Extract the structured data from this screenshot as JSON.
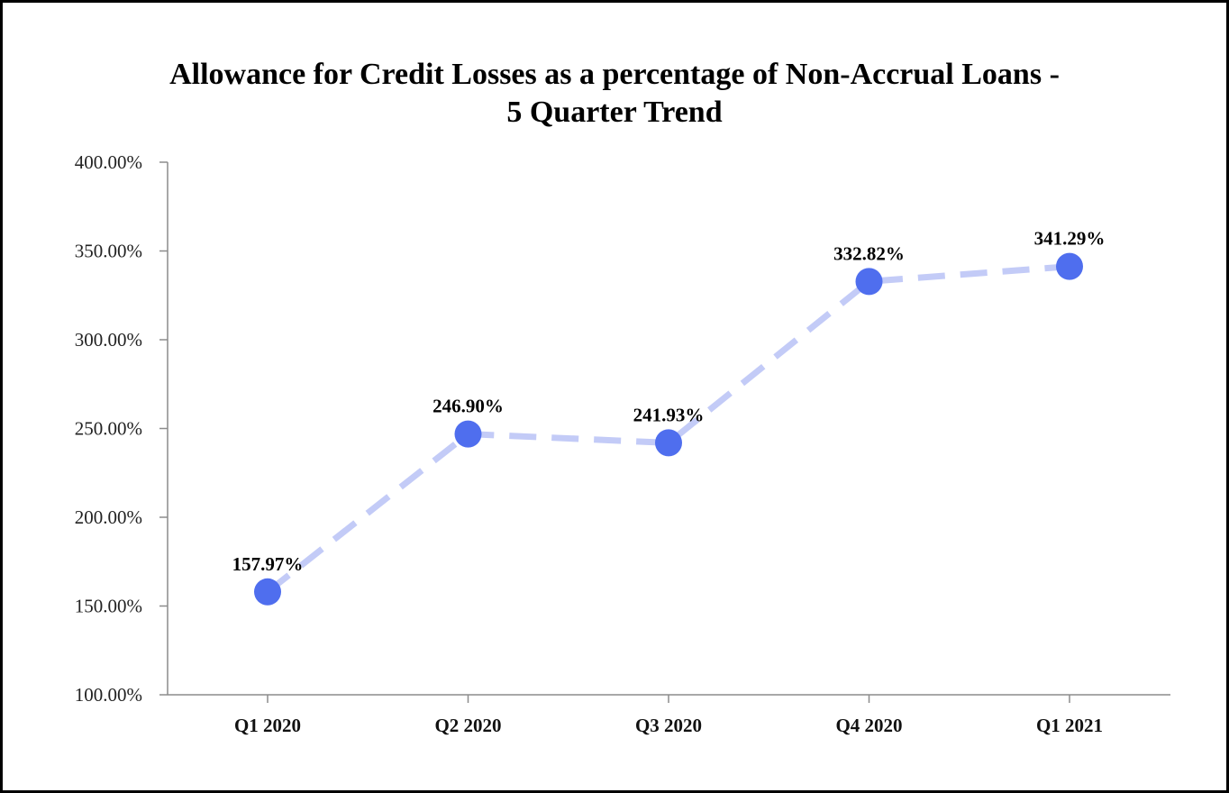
{
  "chart_data": {
    "type": "line",
    "title_lines": [
      "Allowance for Credit Losses as a percentage of Non-Accrual Loans -",
      "5 Quarter Trend"
    ],
    "categories": [
      "Q1 2020",
      "Q2 2020",
      "Q3 2020",
      "Q4 2020",
      "Q1 2021"
    ],
    "series": [
      {
        "values": [
          157.97,
          246.9,
          241.93,
          332.82,
          341.29
        ],
        "data_labels": [
          "157.97%",
          "246.90%",
          "241.93%",
          "332.82%",
          "341.29%"
        ],
        "line_color": "#c3cbf7",
        "marker_color": "#4f6eee",
        "line_style": "dashed"
      }
    ],
    "ylim": [
      100,
      400
    ],
    "yticks": [
      {
        "value": 100,
        "label": "100.00%"
      },
      {
        "value": 150,
        "label": "150.00%"
      },
      {
        "value": 200,
        "label": "200.00%"
      },
      {
        "value": 250,
        "label": "250.00%"
      },
      {
        "value": 300,
        "label": "300.00%"
      },
      {
        "value": 350,
        "label": "350.00%"
      },
      {
        "value": 400,
        "label": "400.00%"
      }
    ],
    "grid": false,
    "legend": "none",
    "xlabel": "",
    "ylabel": ""
  }
}
